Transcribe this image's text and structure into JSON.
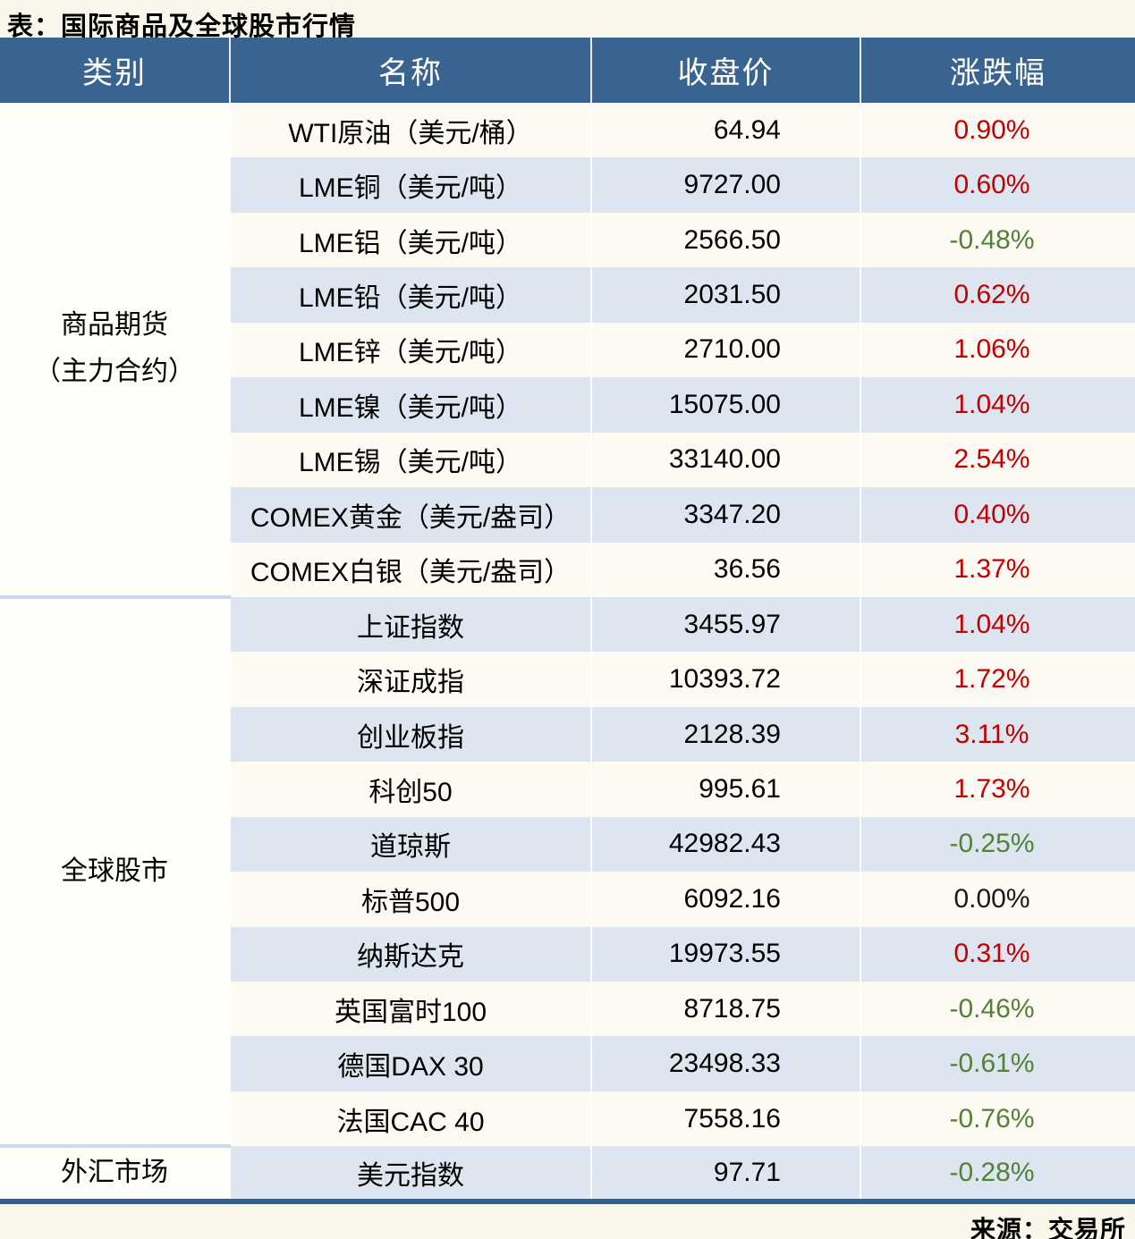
{
  "title": "表：国际商品及全球股市行情",
  "source": "来源：交易所",
  "columns": [
    "类别",
    "名称",
    "收盘价",
    "涨跌幅"
  ],
  "colors": {
    "page_bg": "#F9F6EA",
    "header_bg": "#396490",
    "stripe_bg": "#DCE5F0",
    "plain_bg": "#FCFAF2",
    "category_bg": "#FEFDF8",
    "up_red": "#C00000",
    "down_green": "#538135",
    "flat_black": "#1A1A1A",
    "section_divider": "#CBD9EA",
    "table_bottom_border": "#33608D"
  },
  "sections": [
    {
      "category_lines": [
        "商品期货",
        "（主力合约）"
      ],
      "rows": [
        {
          "name": "WTI原油（美元/桶）",
          "close": "64.94",
          "chg": "0.90%",
          "dir": "up"
        },
        {
          "name": "LME铜（美元/吨）",
          "close": "9727.00",
          "chg": "0.60%",
          "dir": "up"
        },
        {
          "name": "LME铝（美元/吨）",
          "close": "2566.50",
          "chg": "-0.48%",
          "dir": "down"
        },
        {
          "name": "LME铅（美元/吨）",
          "close": "2031.50",
          "chg": "0.62%",
          "dir": "up"
        },
        {
          "name": "LME锌（美元/吨）",
          "close": "2710.00",
          "chg": "1.06%",
          "dir": "up"
        },
        {
          "name": "LME镍（美元/吨）",
          "close": "15075.00",
          "chg": "1.04%",
          "dir": "up"
        },
        {
          "name": "LME锡（美元/吨）",
          "close": "33140.00",
          "chg": "2.54%",
          "dir": "up"
        },
        {
          "name": "COMEX黄金（美元/盎司）",
          "close": "3347.20",
          "chg": "0.40%",
          "dir": "up"
        },
        {
          "name": "COMEX白银（美元/盎司）",
          "close": "36.56",
          "chg": "1.37%",
          "dir": "up"
        }
      ]
    },
    {
      "category_lines": [
        "全球股市"
      ],
      "rows": [
        {
          "name": "上证指数",
          "close": "3455.97",
          "chg": "1.04%",
          "dir": "up"
        },
        {
          "name": "深证成指",
          "close": "10393.72",
          "chg": "1.72%",
          "dir": "up"
        },
        {
          "name": "创业板指",
          "close": "2128.39",
          "chg": "3.11%",
          "dir": "up"
        },
        {
          "name": "科创50",
          "close": "995.61",
          "chg": "1.73%",
          "dir": "up"
        },
        {
          "name": "道琼斯",
          "close": "42982.43",
          "chg": "-0.25%",
          "dir": "down"
        },
        {
          "name": "标普500",
          "close": "6092.16",
          "chg": "0.00%",
          "dir": "flat"
        },
        {
          "name": "纳斯达克",
          "close": "19973.55",
          "chg": "0.31%",
          "dir": "up"
        },
        {
          "name": "英国富时100",
          "close": "8718.75",
          "chg": "-0.46%",
          "dir": "down"
        },
        {
          "name": "德国DAX 30",
          "close": "23498.33",
          "chg": "-0.61%",
          "dir": "down"
        },
        {
          "name": "法国CAC 40",
          "close": "7558.16",
          "chg": "-0.76%",
          "dir": "down"
        }
      ]
    },
    {
      "category_lines": [
        "外汇市场"
      ],
      "rows": [
        {
          "name": "美元指数",
          "close": "97.71",
          "chg": "-0.28%",
          "dir": "down"
        }
      ]
    }
  ],
  "chart_data": {
    "type": "table",
    "title": "表：国际商品及全球股市行情",
    "columns": [
      "类别",
      "名称",
      "收盘价",
      "涨跌幅"
    ],
    "rows": [
      [
        "商品期货（主力合约）",
        "WTI原油（美元/桶）",
        64.94,
        "0.90%"
      ],
      [
        "商品期货（主力合约）",
        "LME铜（美元/吨）",
        9727.0,
        "0.60%"
      ],
      [
        "商品期货（主力合约）",
        "LME铝（美元/吨）",
        2566.5,
        "-0.48%"
      ],
      [
        "商品期货（主力合约）",
        "LME铅（美元/吨）",
        2031.5,
        "0.62%"
      ],
      [
        "商品期货（主力合约）",
        "LME锌（美元/吨）",
        2710.0,
        "1.06%"
      ],
      [
        "商品期货（主力合约）",
        "LME镍（美元/吨）",
        15075.0,
        "1.04%"
      ],
      [
        "商品期货（主力合约）",
        "LME锡（美元/吨）",
        33140.0,
        "2.54%"
      ],
      [
        "商品期货（主力合约）",
        "COMEX黄金（美元/盎司）",
        3347.2,
        "0.40%"
      ],
      [
        "商品期货（主力合约）",
        "COMEX白银（美元/盎司）",
        36.56,
        "1.37%"
      ],
      [
        "全球股市",
        "上证指数",
        3455.97,
        "1.04%"
      ],
      [
        "全球股市",
        "深证成指",
        10393.72,
        "1.72%"
      ],
      [
        "全球股市",
        "创业板指",
        2128.39,
        "3.11%"
      ],
      [
        "全球股市",
        "科创50",
        995.61,
        "1.73%"
      ],
      [
        "全球股市",
        "道琼斯",
        42982.43,
        "-0.25%"
      ],
      [
        "全球股市",
        "标普500",
        6092.16,
        "0.00%"
      ],
      [
        "全球股市",
        "纳斯达克",
        19973.55,
        "0.31%"
      ],
      [
        "全球股市",
        "英国富时100",
        8718.75,
        "-0.46%"
      ],
      [
        "全球股市",
        "德国DAX 30",
        23498.33,
        "-0.61%"
      ],
      [
        "全球股市",
        "法国CAC 40",
        7558.16,
        "-0.76%"
      ],
      [
        "外汇市场",
        "美元指数",
        97.71,
        "-0.28%"
      ]
    ],
    "note": "来源：交易所"
  }
}
